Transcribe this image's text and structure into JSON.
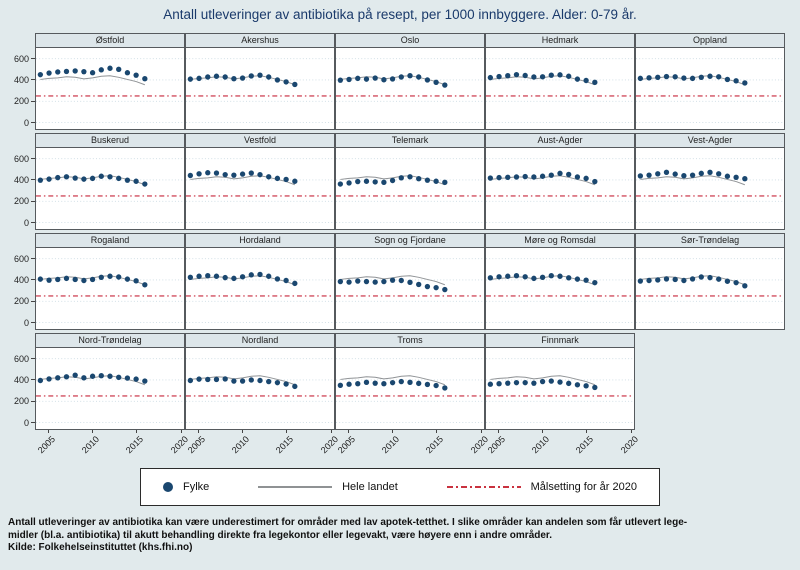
{
  "title": "Antall utleveringer av antibiotika på resept, per 1000 innbyggere. Alder: 0-79 år.",
  "legend": {
    "items": [
      {
        "label": "Fylke",
        "marker": "navy-dot"
      },
      {
        "label": "Hele landet",
        "marker": "gray-line"
      },
      {
        "label": "Målsetting for år 2020",
        "marker": "red-dashdot-line"
      }
    ]
  },
  "notes": [
    "Antall utleveringer av antibiotika kan være underestimert for områder med lav apotek-tetthet. I slike områder kan andelen som får utlevert lege-",
    "midler (bl.a. antibiotika) til akutt behandling direkte fra legekontor eller legevakt, være høyere enn i andre områder.",
    "Kilde: Folkehelseinstituttet (khs.fhi.no)"
  ],
  "colors": {
    "background": "#e1eaec",
    "panel_bg": "#ffffff",
    "panel_header_bg": "#dde6ea",
    "border": "#565a5e",
    "dot": "#1a476f",
    "national_line": "#909396",
    "target_line": "#d25060",
    "gridline": "#ccdbe3",
    "title_text": "#1a3a6b"
  },
  "chart_data": {
    "type": "scatter",
    "layout": {
      "rows": 4,
      "cols": 5,
      "grid": true,
      "legend_position": "bottom"
    },
    "x_years": [
      2004,
      2005,
      2006,
      2007,
      2008,
      2009,
      2010,
      2011,
      2012,
      2013,
      2014,
      2015,
      2016
    ],
    "xlim": [
      2003.5,
      2020.5
    ],
    "ylim": [
      -60,
      700
    ],
    "x_ticks": [
      2005,
      2010,
      2015,
      2020
    ],
    "y_ticks": [
      0,
      200,
      400,
      600
    ],
    "target_line": {
      "label": "Målsetting for år 2020",
      "value": 250
    },
    "national": {
      "label": "Hele landet",
      "values": [
        405,
        415,
        420,
        430,
        425,
        410,
        420,
        435,
        440,
        425,
        405,
        385,
        355
      ]
    },
    "panels": [
      {
        "name": "Østfold",
        "values": [
          450,
          465,
          475,
          480,
          485,
          478,
          468,
          495,
          510,
          500,
          468,
          445,
          412
        ]
      },
      {
        "name": "Akershus",
        "values": [
          408,
          415,
          428,
          435,
          428,
          412,
          418,
          438,
          445,
          428,
          400,
          382,
          358
        ]
      },
      {
        "name": "Oslo",
        "values": [
          398,
          405,
          415,
          408,
          418,
          402,
          410,
          428,
          440,
          428,
          400,
          378,
          352
        ]
      },
      {
        "name": "Hedmark",
        "values": [
          422,
          432,
          440,
          450,
          442,
          428,
          430,
          445,
          448,
          435,
          408,
          395,
          378
        ]
      },
      {
        "name": "Oppland",
        "values": [
          415,
          420,
          425,
          432,
          430,
          418,
          415,
          425,
          435,
          430,
          405,
          392,
          372
        ]
      },
      {
        "name": "Buskerud",
        "values": [
          398,
          408,
          422,
          430,
          418,
          408,
          415,
          435,
          430,
          415,
          398,
          388,
          362
        ]
      },
      {
        "name": "Vestfold",
        "values": [
          442,
          458,
          468,
          465,
          450,
          445,
          455,
          465,
          450,
          430,
          415,
          405,
          388
        ]
      },
      {
        "name": "Telemark",
        "values": [
          362,
          372,
          385,
          388,
          382,
          378,
          395,
          420,
          430,
          412,
          398,
          388,
          378
        ]
      },
      {
        "name": "Aust-Agder",
        "values": [
          418,
          422,
          425,
          428,
          432,
          428,
          435,
          445,
          462,
          452,
          428,
          415,
          385
        ]
      },
      {
        "name": "Vest-Agder",
        "values": [
          438,
          445,
          458,
          472,
          455,
          440,
          445,
          462,
          472,
          458,
          435,
          425,
          412
        ]
      },
      {
        "name": "Rogaland",
        "values": [
          408,
          398,
          405,
          415,
          405,
          395,
          405,
          425,
          435,
          428,
          408,
          392,
          355
        ]
      },
      {
        "name": "Hordaland",
        "values": [
          425,
          435,
          440,
          435,
          422,
          415,
          430,
          448,
          452,
          435,
          410,
          395,
          368
        ]
      },
      {
        "name": "Sogn og Fjordane",
        "values": [
          385,
          380,
          390,
          385,
          380,
          385,
          398,
          395,
          378,
          358,
          338,
          328,
          310
        ]
      },
      {
        "name": "Møre og Romsdal",
        "values": [
          420,
          430,
          435,
          440,
          430,
          415,
          425,
          440,
          435,
          420,
          408,
          398,
          375
        ]
      },
      {
        "name": "Sør-Trøndelag",
        "values": [
          390,
          395,
          400,
          410,
          405,
          395,
          410,
          428,
          422,
          408,
          388,
          375,
          345
        ]
      },
      {
        "name": "Nord-Trøndelag",
        "values": [
          395,
          410,
          420,
          430,
          445,
          420,
          435,
          440,
          435,
          425,
          418,
          408,
          390
        ]
      },
      {
        "name": "Nordland",
        "values": [
          395,
          408,
          405,
          405,
          410,
          390,
          390,
          400,
          395,
          385,
          375,
          362,
          340
        ]
      },
      {
        "name": "Troms",
        "values": [
          350,
          360,
          365,
          378,
          370,
          365,
          375,
          385,
          378,
          368,
          358,
          348,
          325
        ]
      },
      {
        "name": "Finnmark",
        "values": [
          360,
          365,
          370,
          375,
          375,
          370,
          385,
          390,
          380,
          368,
          355,
          345,
          330
        ]
      }
    ]
  }
}
